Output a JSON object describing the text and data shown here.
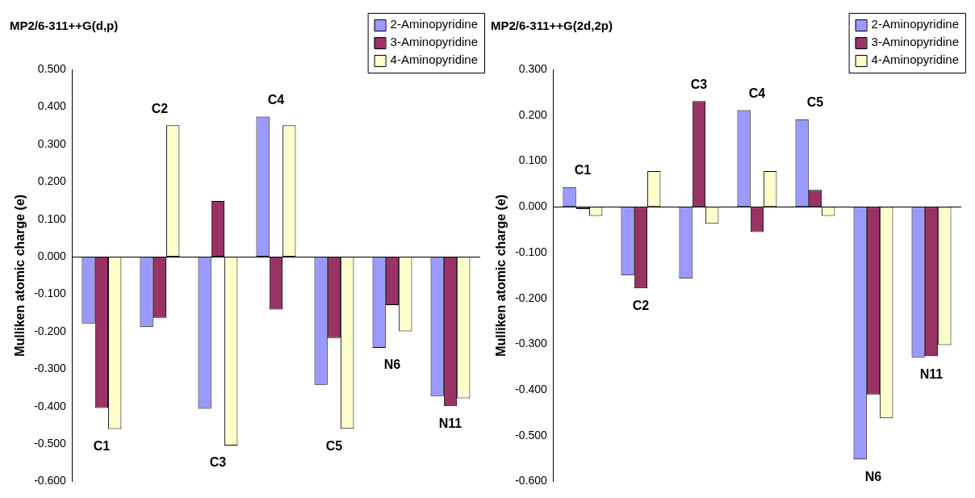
{
  "chart_data": [
    {
      "type": "bar",
      "title": "MP2/6-311++G(d,p)",
      "ylabel": "Mulliken atomic charge (e)",
      "categories": [
        "C1",
        "C2",
        "C3",
        "C4",
        "C5",
        "N6",
        "N11"
      ],
      "series": [
        {
          "name": "2-Aminopyridine",
          "color": "#9999ff",
          "values": [
            -0.178,
            -0.188,
            -0.406,
            0.374,
            -0.342,
            -0.243,
            -0.372
          ]
        },
        {
          "name": "3-Aminopyridine",
          "color": "#993366",
          "values": [
            -0.404,
            -0.163,
            0.149,
            -0.141,
            -0.217,
            -0.129,
            -0.399
          ]
        },
        {
          "name": "4-Aminopyridine",
          "color": "#ffffcc",
          "values": [
            -0.46,
            0.351,
            -0.504,
            0.351,
            -0.459,
            -0.199,
            -0.378
          ]
        }
      ],
      "ylim": [
        -0.6,
        0.5
      ],
      "yticks": [
        {
          "value": -0.6,
          "label": "-0.600"
        },
        {
          "value": -0.5,
          "label": "-0.500"
        },
        {
          "value": -0.4,
          "label": "-0.400"
        },
        {
          "value": -0.3,
          "label": "-0.300"
        },
        {
          "value": -0.2,
          "label": "-0.200"
        },
        {
          "value": -0.1,
          "label": "-0.100"
        },
        {
          "value": 0,
          "label": "0.000"
        },
        {
          "value": 0.1,
          "label": "0.100"
        },
        {
          "value": 0.2,
          "label": "0.200"
        },
        {
          "value": 0.3,
          "label": "0.300"
        },
        {
          "value": 0.4,
          "label": "0.400"
        },
        {
          "value": 0.5,
          "label": "0.500"
        }
      ],
      "legend": "top right"
    },
    {
      "type": "bar",
      "title": "MP2/6-311++G(2d,2p)",
      "ylabel": "Mulliken atomic charge (e)",
      "categories": [
        "C1",
        "C2",
        "C3",
        "C4",
        "C5",
        "N6",
        "N11"
      ],
      "series": [
        {
          "name": "2-Aminopyridine",
          "color": "#9999ff",
          "values": [
            0.043,
            -0.15,
            -0.157,
            0.211,
            0.191,
            -0.552,
            -0.329
          ]
        },
        {
          "name": "3-Aminopyridine",
          "color": "#993366",
          "values": [
            -0.005,
            -0.178,
            0.231,
            -0.055,
            0.037,
            -0.41,
            -0.326
          ]
        },
        {
          "name": "4-Aminopyridine",
          "color": "#ffffcc",
          "values": [
            -0.02,
            0.078,
            -0.037,
            0.078,
            -0.02,
            -0.462,
            -0.302
          ]
        }
      ],
      "ylim": [
        -0.6,
        0.3
      ],
      "yticks": [
        {
          "value": -0.6,
          "label": "-0.600"
        },
        {
          "value": -0.5,
          "label": "-0.500"
        },
        {
          "value": -0.4,
          "label": "-0.400"
        },
        {
          "value": -0.3,
          "label": "-0.300"
        },
        {
          "value": -0.2,
          "label": "-0.200"
        },
        {
          "value": -0.1,
          "label": "-0.100"
        },
        {
          "value": 0,
          "label": "0.000"
        },
        {
          "value": 0.1,
          "label": "0.100"
        },
        {
          "value": 0.2,
          "label": "0.200"
        },
        {
          "value": 0.3,
          "label": "0.300"
        }
      ],
      "legend": "top right"
    }
  ]
}
